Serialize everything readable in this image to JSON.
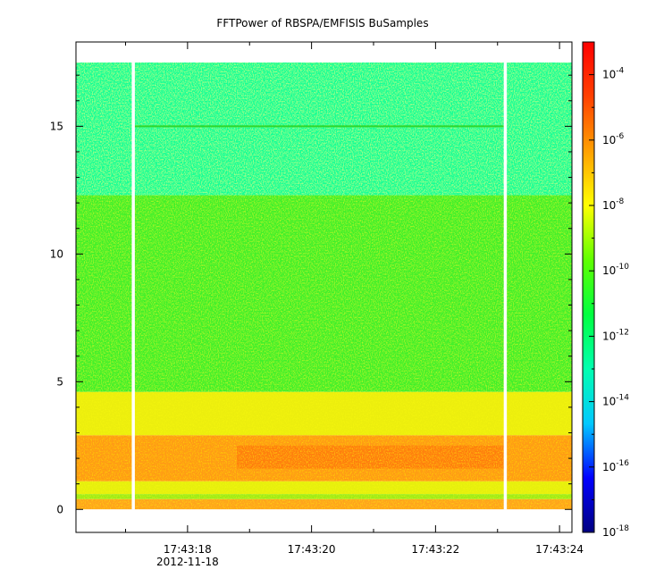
{
  "chart_data": {
    "type": "heatmap",
    "title": "FFTPower of RBSPA/EMFISIS  BuSamples",
    "xlabel": "",
    "ylabel": "",
    "date_label": "2012-11-18",
    "x_tick_labels": [
      "17:43:18",
      "17:43:20",
      "17:43:22",
      "17:43:24"
    ],
    "x_range_seconds": [
      16.2,
      24.2
    ],
    "x_major_ticks_seconds": [
      18,
      20,
      22,
      24
    ],
    "x_minor_ticks_seconds": [
      17,
      19,
      21,
      23
    ],
    "ylim": [
      -0.9,
      18.3
    ],
    "y_tick_labels": [
      "0",
      "5",
      "10",
      "15"
    ],
    "y_ticks": [
      0,
      5,
      10,
      15
    ],
    "data_y_range": [
      0,
      17.5
    ],
    "data_gaps_seconds": [
      [
        17.1,
        17.15
      ],
      [
        23.1,
        23.15
      ]
    ],
    "colorbar": {
      "scale": "log",
      "range": [
        1e-18,
        0.001
      ],
      "tick_base": "10",
      "tick_exponents": [
        "-4",
        "-6",
        "-8",
        "-10",
        "-12",
        "-14",
        "-16",
        "-18"
      ],
      "tick_values": [
        0.0001,
        1e-06,
        1e-08,
        1e-10,
        1e-12,
        1e-14,
        1e-16,
        1e-18
      ],
      "colormap": [
        "#000080",
        "#0000ff",
        "#00c8ff",
        "#00ffb0",
        "#00ff40",
        "#60ff00",
        "#ffff00",
        "#ffa000",
        "#ff4000",
        "#ff0000"
      ]
    },
    "bands": [
      {
        "y_range": [
          12.3,
          17.5
        ],
        "log10_power": -12.3,
        "color": "#13ff95"
      },
      {
        "y_range": [
          4.6,
          12.3
        ],
        "log10_power": -10.5,
        "color": "#3ff02c"
      },
      {
        "y_range": [
          2.9,
          4.6
        ],
        "log10_power": -8.6,
        "color": "#ecee0c"
      },
      {
        "y_range": [
          1.1,
          2.9
        ],
        "log10_power": -7.2,
        "color": "#ff9a12"
      },
      {
        "y_range": [
          0.6,
          1.1
        ],
        "log10_power": -8.6,
        "color": "#e6ef10"
      },
      {
        "y_range": [
          0.4,
          0.6
        ],
        "log10_power": -10.0,
        "color": "#9eec16"
      },
      {
        "y_range": [
          0,
          0.4
        ],
        "log10_power": -7.5,
        "color": "#ffa31a"
      }
    ],
    "spectral_line_y": 15.0
  }
}
